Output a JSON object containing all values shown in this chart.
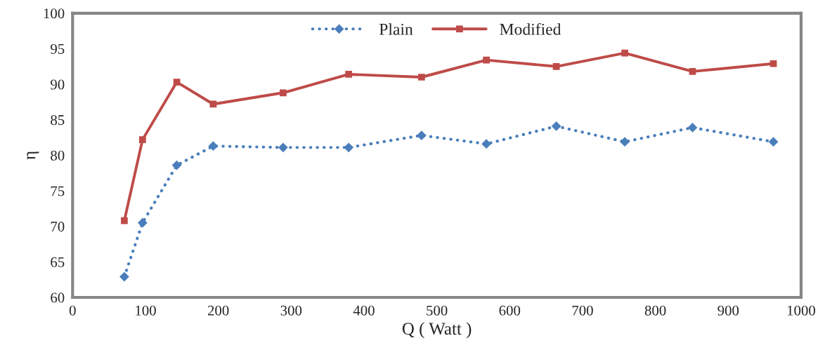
{
  "chart_data": {
    "type": "line",
    "xlabel": "Q ( Watt )",
    "ylabel": "η",
    "xlim": [
      0,
      1000
    ],
    "xticks": [
      0,
      100,
      200,
      300,
      400,
      500,
      600,
      700,
      800,
      900,
      1000
    ],
    "ylim": [
      60,
      100
    ],
    "yticks": [
      60,
      65,
      70,
      75,
      80,
      85,
      90,
      95,
      100
    ],
    "grid": false,
    "legend": "top",
    "x": [
      71,
      96,
      143,
      193,
      289,
      379,
      479,
      568,
      664,
      758,
      851,
      962
    ],
    "series": [
      {
        "name": "Plain",
        "color": "#4a7ebb",
        "marker": "diamond",
        "line_style": "dotted",
        "values": [
          62.9,
          70.5,
          78.6,
          81.3,
          81.1,
          81.1,
          82.8,
          81.6,
          84.1,
          81.9,
          83.9,
          81.9
        ]
      },
      {
        "name": "Modified",
        "color": "#be4b48",
        "marker": "square",
        "line_style": "solid",
        "values": [
          70.8,
          82.2,
          90.3,
          87.2,
          88.8,
          91.4,
          91.0,
          93.4,
          92.5,
          94.4,
          91.8,
          92.9
        ]
      }
    ]
  }
}
